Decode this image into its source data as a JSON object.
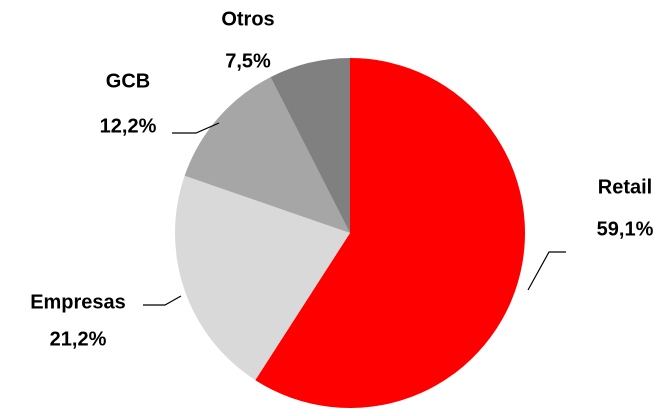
{
  "chart_data": {
    "type": "pie",
    "categories": [
      "Retail",
      "Empresas",
      "GCB",
      "Otros"
    ],
    "values": [
      59.1,
      21.2,
      12.2,
      7.5
    ],
    "value_labels": [
      "59,1%",
      "21,2%",
      "12,2%",
      "7,5%"
    ],
    "colors": [
      "#ff0000",
      "#d9d9d9",
      "#a6a6a6",
      "#808080"
    ]
  }
}
